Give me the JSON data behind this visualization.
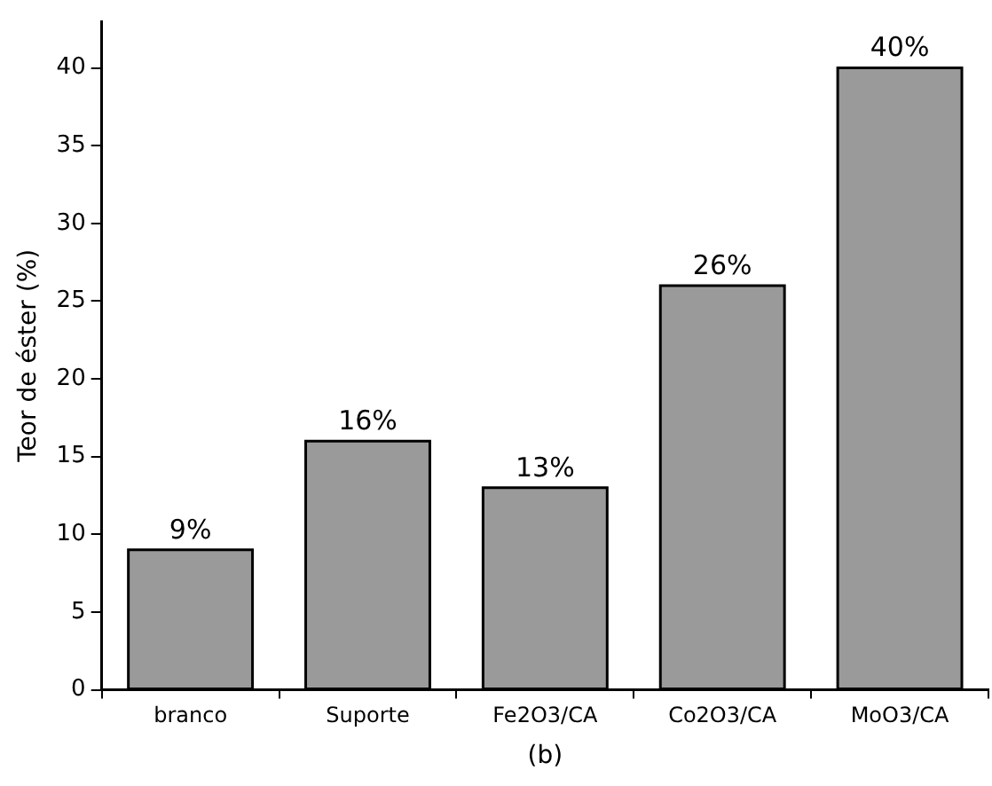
{
  "chart_data": {
    "type": "bar",
    "xlabel": "(b)",
    "ylabel": "Teor de éster (%)",
    "categories": [
      "branco",
      "Suporte",
      "Fe2O3/CA",
      "Co2O3/CA",
      "MoO3/CA"
    ],
    "values": [
      9,
      16,
      13,
      26,
      40
    ],
    "color": "#9a9a9a",
    "value_labels": [
      "9%",
      "16%",
      "13%",
      "26%",
      "40%"
    ],
    "ylim": [
      0,
      43
    ],
    "yticks": [
      0,
      5,
      10,
      15,
      20,
      25,
      30,
      35,
      40
    ],
    "grid": false,
    "legend": false
  }
}
